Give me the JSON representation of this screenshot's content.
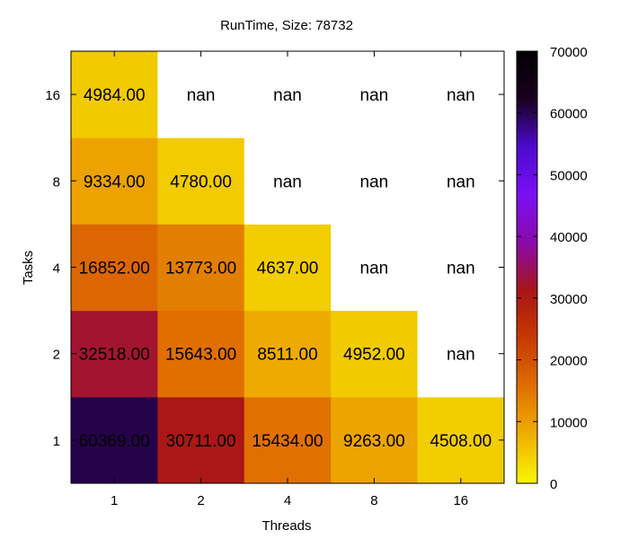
{
  "chart_data": {
    "type": "heatmap",
    "title": "RunTime, Size: 78732",
    "xlabel": "Threads",
    "ylabel": "Tasks",
    "x_categories": [
      "1",
      "2",
      "4",
      "8",
      "16"
    ],
    "y_categories": [
      "1",
      "2",
      "4",
      "8",
      "16"
    ],
    "values": [
      [
        60369.0,
        30711.0,
        15434.0,
        9263.0,
        4508.0
      ],
      [
        32518.0,
        15643.0,
        8511.0,
        4952.0,
        null
      ],
      [
        16852.0,
        13773.0,
        4637.0,
        null,
        null
      ],
      [
        9334.0,
        4780.0,
        null,
        null,
        null
      ],
      [
        4984.0,
        null,
        null,
        null,
        null
      ]
    ],
    "cell_labels": [
      [
        "60369.00",
        "30711.00",
        "15434.00",
        "9263.00",
        "4508.00"
      ],
      [
        "32518.00",
        "15643.00",
        "8511.00",
        "4952.00",
        "nan"
      ],
      [
        "16852.00",
        "13773.00",
        "4637.00",
        "nan",
        "nan"
      ],
      [
        "9334.00",
        "4780.00",
        "nan",
        "nan",
        "nan"
      ],
      [
        "4984.00",
        "nan",
        "nan",
        "nan",
        "nan"
      ]
    ],
    "colorbar": {
      "range": [
        0,
        70000
      ],
      "ticks": [
        0,
        10000,
        20000,
        30000,
        40000,
        50000,
        60000,
        70000
      ],
      "tick_labels": [
        "0",
        "10000",
        "20000",
        "30000",
        "40000",
        "50000",
        "60000",
        "70000"
      ],
      "palette": [
        "#f7f700",
        "#efb000",
        "#e07000",
        "#c83a00",
        "#a81616",
        "#8a0aa8",
        "#7a10f2",
        "#4d0ad0",
        "#1a0020",
        "#000000"
      ]
    },
    "nan_color": "#ffffff",
    "grid": false,
    "legend": "colorbar-right"
  }
}
